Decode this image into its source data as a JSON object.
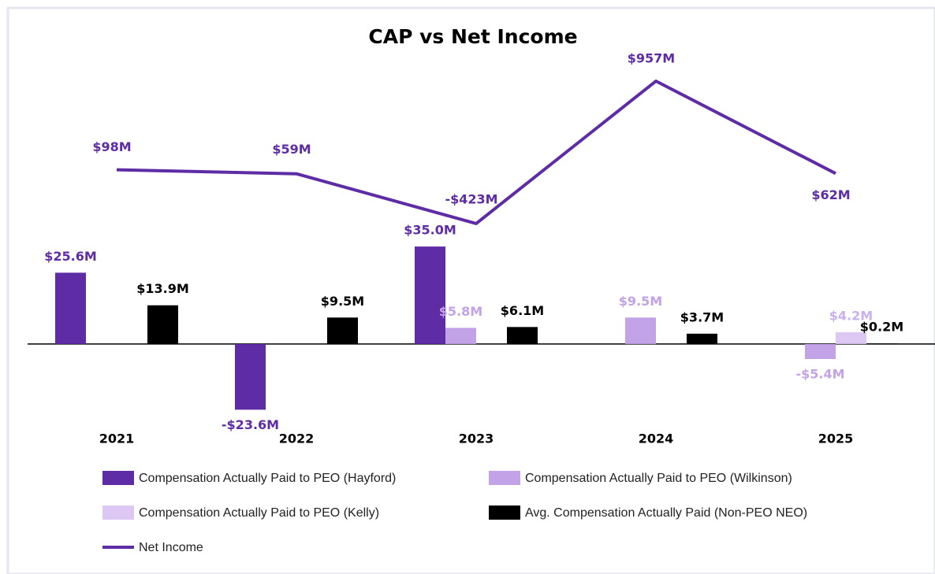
{
  "chart_data": {
    "type": "bar",
    "title": "CAP vs Net Income",
    "categories": [
      "2021",
      "2022",
      "2023",
      "2024",
      "2025"
    ],
    "ylim": [
      -30,
      106
    ],
    "y2lim": [
      -2400,
      1270
    ],
    "series": [
      {
        "name": "Compensation Actually Paid to PEO (Hayford)",
        "color": "#5e2ca5",
        "values": [
          25.6,
          -23.6,
          35.0,
          null,
          null
        ],
        "value_labels": [
          "$25.6M",
          "-$23.6M",
          "$35.0M",
          null,
          null
        ]
      },
      {
        "name": "Compensation Actually Paid to PEO (Wilkinson)",
        "color": "#c3a3e8",
        "values": [
          null,
          null,
          5.8,
          9.5,
          -5.4
        ],
        "value_labels": [
          null,
          null,
          "$5.8M",
          "$9.5M",
          "-$5.4M"
        ]
      },
      {
        "name": "Compensation Actually Paid to PEO (Kelly)",
        "color": "#dcc8f3",
        "values": [
          null,
          null,
          null,
          null,
          4.2
        ],
        "value_labels": [
          null,
          null,
          null,
          null,
          "$4.2M"
        ]
      },
      {
        "name": "Avg. Compensation Actually Paid (Non-PEO NEO)",
        "color": "#000000",
        "values": [
          13.9,
          9.5,
          6.1,
          3.7,
          0.2
        ],
        "value_labels": [
          "$13.9M",
          "$9.5M",
          "$6.1M",
          "$3.7M",
          "$0.2M"
        ]
      },
      {
        "name": "Net Income",
        "type": "line",
        "axis": "y2",
        "color": "#5e2ca5",
        "values": [
          98,
          59,
          -423,
          957,
          62
        ],
        "value_labels": [
          "$98M",
          "$59M",
          "-$423M",
          "$957M",
          "$62M"
        ]
      }
    ]
  }
}
